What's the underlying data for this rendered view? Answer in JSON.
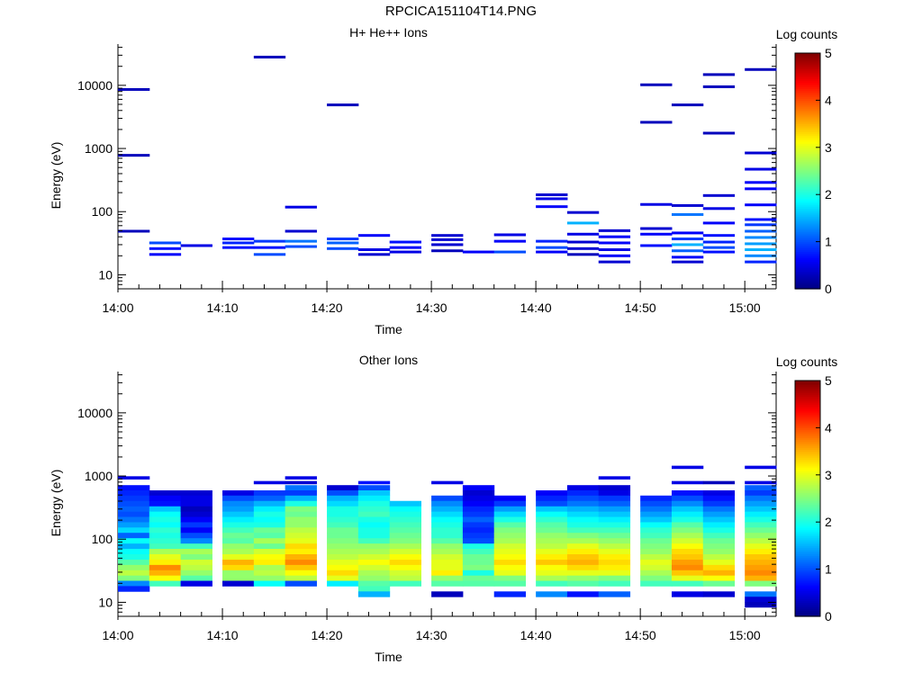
{
  "page": {
    "title": "RPCICA151104T14.PNG"
  },
  "colorbar": {
    "label": "Log counts",
    "range": [
      0,
      5
    ],
    "ticks": [
      "0",
      "1",
      "2",
      "3",
      "4",
      "5"
    ],
    "colormap": [
      "#00007f",
      "#0000ff",
      "#007fff",
      "#00ffff",
      "#7fff7f",
      "#ffff00",
      "#ff7f00",
      "#ff0000",
      "#7f0000"
    ]
  },
  "chart_data": [
    {
      "type": "heatmap",
      "title": "H+ He++ Ions",
      "xlabel": "Time",
      "ylabel": "Energy (eV)",
      "xlim": [
        "14:00",
        "15:03"
      ],
      "ylim": [
        6,
        45000
      ],
      "yscale": "log",
      "xticks": [
        "14:00",
        "14:10",
        "14:20",
        "14:30",
        "14:40",
        "14:50",
        "15:00"
      ],
      "yticks": [
        "10",
        "100",
        "1000",
        "10000"
      ],
      "time_bins": [
        "14:00",
        "14:03",
        "14:06",
        "14:10",
        "14:13",
        "14:16",
        "14:20",
        "14:23",
        "14:26",
        "14:30",
        "14:33",
        "14:36",
        "14:40",
        "14:43",
        "14:46",
        "14:50",
        "14:53",
        "14:56",
        "15:00"
      ],
      "cells": [
        [
          0,
          8600,
          0.3
        ],
        [
          0,
          780,
          0.3
        ],
        [
          0,
          49,
          0.3
        ],
        [
          1,
          32,
          1.0
        ],
        [
          1,
          26,
          0.7
        ],
        [
          1,
          21,
          0.6
        ],
        [
          2,
          29,
          0.5
        ],
        [
          3,
          37,
          0.7
        ],
        [
          3,
          32,
          0.8
        ],
        [
          3,
          27,
          0.7
        ],
        [
          4,
          28000,
          0.3
        ],
        [
          4,
          34,
          0.9
        ],
        [
          4,
          27,
          0.7
        ],
        [
          4,
          21,
          1.0
        ],
        [
          5,
          118,
          0.5
        ],
        [
          5,
          49,
          0.4
        ],
        [
          5,
          34,
          1.2
        ],
        [
          5,
          28,
          1.0
        ],
        [
          6,
          4900,
          0.3
        ],
        [
          6,
          37,
          0.9
        ],
        [
          6,
          32,
          1.1
        ],
        [
          6,
          26,
          1.0
        ],
        [
          7,
          42,
          0.6
        ],
        [
          7,
          25,
          0.5
        ],
        [
          7,
          21,
          0.4
        ],
        [
          8,
          33,
          0.7
        ],
        [
          8,
          27,
          0.6
        ],
        [
          8,
          23,
          0.5
        ],
        [
          9,
          42,
          0.4
        ],
        [
          9,
          36,
          0.4
        ],
        [
          9,
          30,
          0.4
        ],
        [
          9,
          24,
          0.3
        ],
        [
          10,
          23,
          0.6
        ],
        [
          11,
          43,
          0.5
        ],
        [
          11,
          34,
          0.6
        ],
        [
          11,
          23,
          1.0
        ],
        [
          12,
          185,
          0.4
        ],
        [
          12,
          160,
          0.5
        ],
        [
          12,
          120,
          0.6
        ],
        [
          12,
          34,
          0.8
        ],
        [
          12,
          27,
          1.0
        ],
        [
          12,
          23,
          0.6
        ],
        [
          13,
          97,
          0.4
        ],
        [
          13,
          66,
          1.5
        ],
        [
          13,
          44,
          0.5
        ],
        [
          13,
          33,
          0.4
        ],
        [
          13,
          26,
          0.4
        ],
        [
          13,
          21,
          0.3
        ],
        [
          14,
          50,
          0.4
        ],
        [
          14,
          40,
          0.6
        ],
        [
          14,
          32,
          0.6
        ],
        [
          14,
          25,
          0.5
        ],
        [
          14,
          20,
          0.6
        ],
        [
          14,
          16,
          0.4
        ],
        [
          15,
          10200,
          0.3
        ],
        [
          15,
          2600,
          0.3
        ],
        [
          15,
          130,
          0.5
        ],
        [
          15,
          54,
          0.4
        ],
        [
          15,
          44,
          0.6
        ],
        [
          15,
          29,
          0.7
        ],
        [
          16,
          4900,
          0.3
        ],
        [
          16,
          125,
          0.4
        ],
        [
          16,
          90,
          1.2
        ],
        [
          16,
          46,
          0.6
        ],
        [
          16,
          37,
          0.9
        ],
        [
          16,
          30,
          1.5
        ],
        [
          16,
          24,
          1.1
        ],
        [
          16,
          19,
          0.6
        ],
        [
          16,
          16,
          0.4
        ],
        [
          17,
          14800,
          0.3
        ],
        [
          17,
          9500,
          0.3
        ],
        [
          17,
          1750,
          0.3
        ],
        [
          17,
          180,
          0.4
        ],
        [
          17,
          112,
          0.5
        ],
        [
          17,
          66,
          0.6
        ],
        [
          17,
          42,
          0.7
        ],
        [
          17,
          33,
          0.8
        ],
        [
          17,
          27,
          1.0
        ],
        [
          17,
          23,
          0.7
        ],
        [
          18,
          17800,
          0.3
        ],
        [
          18,
          850,
          0.4
        ],
        [
          18,
          470,
          0.5
        ],
        [
          18,
          290,
          0.6
        ],
        [
          18,
          230,
          0.6
        ],
        [
          18,
          128,
          0.6
        ],
        [
          18,
          75,
          0.7
        ],
        [
          18,
          62,
          0.9
        ],
        [
          18,
          49,
          1.1
        ],
        [
          18,
          39,
          1.3
        ],
        [
          18,
          31,
          1.4
        ],
        [
          18,
          25,
          1.5
        ],
        [
          18,
          20,
          1.3
        ],
        [
          18,
          16,
          0.8
        ]
      ]
    },
    {
      "type": "heatmap",
      "title": "Other Ions",
      "xlabel": "Time",
      "ylabel": "Energy (eV)",
      "xlim": [
        "14:00",
        "15:03"
      ],
      "ylim": [
        6,
        45000
      ],
      "yscale": "log",
      "xticks": [
        "14:00",
        "14:10",
        "14:20",
        "14:30",
        "14:40",
        "14:50",
        "15:00"
      ],
      "yticks": [
        "10",
        "100",
        "1000",
        "10000"
      ],
      "time_bins": [
        "14:00",
        "14:03",
        "14:06",
        "14:10",
        "14:13",
        "14:16",
        "14:20",
        "14:23",
        "14:26",
        "14:30",
        "14:33",
        "14:36",
        "14:40",
        "14:43",
        "14:46",
        "14:50",
        "14:53",
        "14:56",
        "15:00"
      ],
      "energy_bins": [
        1380,
        940,
        790,
        650,
        540,
        445,
        365,
        300,
        248,
        204,
        168,
        139,
        114,
        94,
        77,
        64,
        52,
        43,
        35.5,
        29.2,
        24.1,
        19.9,
        16.4,
        13.5,
        11.1,
        9.2,
        7.6
      ],
      "values": [
        [
          null,
          0.5,
          null,
          0.7,
          0.8,
          0.9,
          1.0,
          1.1,
          1.0,
          1.2,
          1.4,
          1.7,
          1.1,
          1.9,
          1.5,
          1.9,
          2.0,
          2.3,
          2.6,
          2.8,
          2.5,
          1.3,
          0.8,
          null,
          null,
          null,
          null
        ],
        [
          null,
          null,
          null,
          null,
          0.4,
          0.6,
          0.7,
          1.6,
          1.9,
          2.0,
          1.9,
          2.1,
          2.0,
          2.1,
          2.2,
          2.7,
          3.0,
          3.2,
          3.7,
          3.5,
          3.1,
          2.2,
          null,
          null,
          null,
          null,
          null
        ],
        [
          null,
          null,
          null,
          null,
          0.4,
          0.5,
          0.5,
          0.3,
          0.4,
          0.6,
          0.9,
          0.6,
          1.0,
          1.3,
          2.2,
          2.7,
          2.5,
          2.9,
          2.8,
          2.6,
          2.3,
          0.5,
          null,
          null,
          null,
          null,
          null
        ],
        [
          null,
          null,
          null,
          null,
          0.5,
          1.0,
          1.3,
          1.4,
          1.6,
          1.8,
          2.0,
          2.2,
          2.4,
          2.3,
          2.6,
          2.7,
          3.0,
          3.5,
          3.3,
          2.6,
          2.6,
          0.4,
          null,
          null,
          null,
          null,
          null
        ],
        [
          null,
          null,
          0.5,
          null,
          0.9,
          1.1,
          1.5,
          1.8,
          2.0,
          1.9,
          2.0,
          2.4,
          2.3,
          2.7,
          2.4,
          2.9,
          3.1,
          3.2,
          2.7,
          2.8,
          2.6,
          1.9,
          null,
          null,
          null,
          null,
          null
        ],
        [
          null,
          0.5,
          0.4,
          1.2,
          0.9,
          1.5,
          2.0,
          2.5,
          2.4,
          2.6,
          2.6,
          2.8,
          2.9,
          3.0,
          3.3,
          3.2,
          3.5,
          3.7,
          3.4,
          3.1,
          2.8,
          1.0,
          null,
          null,
          null,
          null,
          null
        ],
        [
          null,
          null,
          null,
          0.4,
          1.0,
          1.5,
          1.7,
          2.0,
          2.0,
          2.1,
          2.2,
          2.4,
          2.4,
          2.5,
          2.6,
          2.7,
          2.8,
          3.0,
          3.1,
          3.3,
          3.0,
          1.8,
          null,
          null,
          null,
          null,
          null
        ],
        [
          null,
          null,
          0.7,
          1.0,
          1.6,
          1.8,
          2.0,
          2.1,
          2.2,
          2.0,
          1.9,
          2.0,
          2.0,
          2.2,
          2.6,
          2.7,
          2.9,
          3.1,
          2.9,
          2.7,
          2.6,
          2.3,
          2.2,
          1.5,
          null,
          null,
          null
        ],
        [
          null,
          null,
          null,
          null,
          null,
          null,
          1.6,
          1.9,
          2.0,
          2.1,
          2.2,
          2.3,
          2.4,
          2.5,
          2.7,
          2.9,
          3.1,
          3.3,
          3.1,
          2.9,
          2.8,
          2.2,
          null,
          null,
          null,
          null,
          null
        ],
        [
          null,
          null,
          0.5,
          null,
          null,
          1.0,
          1.3,
          1.5,
          1.7,
          1.9,
          2.0,
          2.1,
          2.1,
          2.3,
          2.6,
          2.7,
          2.9,
          3.0,
          3.0,
          3.2,
          2.6,
          2.3,
          null,
          0.3,
          null,
          null,
          null
        ],
        [
          null,
          null,
          null,
          0.6,
          0.4,
          0.5,
          0.6,
          0.8,
          0.9,
          1.1,
          0.9,
          0.8,
          0.9,
          1.0,
          2.0,
          2.2,
          2.4,
          2.4,
          2.5,
          2.0,
          2.4,
          2.3,
          null,
          null,
          null,
          null,
          null
        ],
        [
          null,
          null,
          null,
          null,
          null,
          0.6,
          0.9,
          1.4,
          1.7,
          2.0,
          2.3,
          2.5,
          2.6,
          2.7,
          2.9,
          3.0,
          3.1,
          3.3,
          3.1,
          3.0,
          2.5,
          2.3,
          null,
          0.8,
          null,
          null,
          null
        ],
        [
          null,
          null,
          null,
          null,
          0.6,
          0.8,
          1.0,
          1.6,
          1.9,
          2.1,
          2.3,
          2.4,
          2.6,
          2.7,
          2.8,
          3.0,
          3.2,
          3.4,
          3.1,
          3.0,
          2.7,
          2.2,
          null,
          1.3,
          null,
          null,
          null
        ],
        [
          null,
          null,
          null,
          0.5,
          0.8,
          1.0,
          1.2,
          1.5,
          1.7,
          1.9,
          2.0,
          2.2,
          2.5,
          2.7,
          3.0,
          3.2,
          3.4,
          3.5,
          3.3,
          3.0,
          2.6,
          2.3,
          null,
          0.7,
          null,
          null,
          null
        ],
        [
          null,
          0.5,
          null,
          0.4,
          0.5,
          0.9,
          1.1,
          1.4,
          1.6,
          1.8,
          2.0,
          2.2,
          2.4,
          2.6,
          2.8,
          3.0,
          3.2,
          3.3,
          3.2,
          3.0,
          2.5,
          2.2,
          null,
          1.1,
          null,
          null,
          null
        ],
        [
          null,
          null,
          null,
          null,
          null,
          0.8,
          1.0,
          1.2,
          1.4,
          1.6,
          1.9,
          2.1,
          2.2,
          2.4,
          2.5,
          2.6,
          2.8,
          3.0,
          2.9,
          2.7,
          2.5,
          2.2,
          null,
          null,
          null,
          null,
          null
        ],
        [
          0.5,
          null,
          0.5,
          null,
          0.7,
          1.0,
          1.3,
          1.6,
          1.8,
          2.0,
          2.3,
          2.5,
          2.7,
          2.9,
          3.1,
          3.3,
          3.4,
          3.6,
          3.7,
          3.4,
          3.0,
          2.2,
          null,
          0.5,
          null,
          null,
          null
        ],
        [
          null,
          null,
          0.3,
          null,
          0.5,
          0.7,
          0.9,
          1.2,
          1.4,
          1.6,
          1.8,
          2.0,
          2.2,
          2.4,
          2.5,
          2.6,
          2.8,
          3.0,
          3.3,
          3.5,
          3.1,
          2.4,
          null,
          0.4,
          null,
          null,
          null
        ],
        [
          0.5,
          null,
          0.5,
          1.1,
          0.9,
          1.2,
          1.4,
          1.6,
          1.8,
          2.0,
          2.2,
          2.4,
          2.6,
          2.8,
          3.0,
          3.2,
          3.4,
          3.5,
          3.6,
          3.7,
          3.5,
          2.5,
          null,
          1.2,
          0.4,
          0.3,
          null
        ]
      ]
    }
  ]
}
